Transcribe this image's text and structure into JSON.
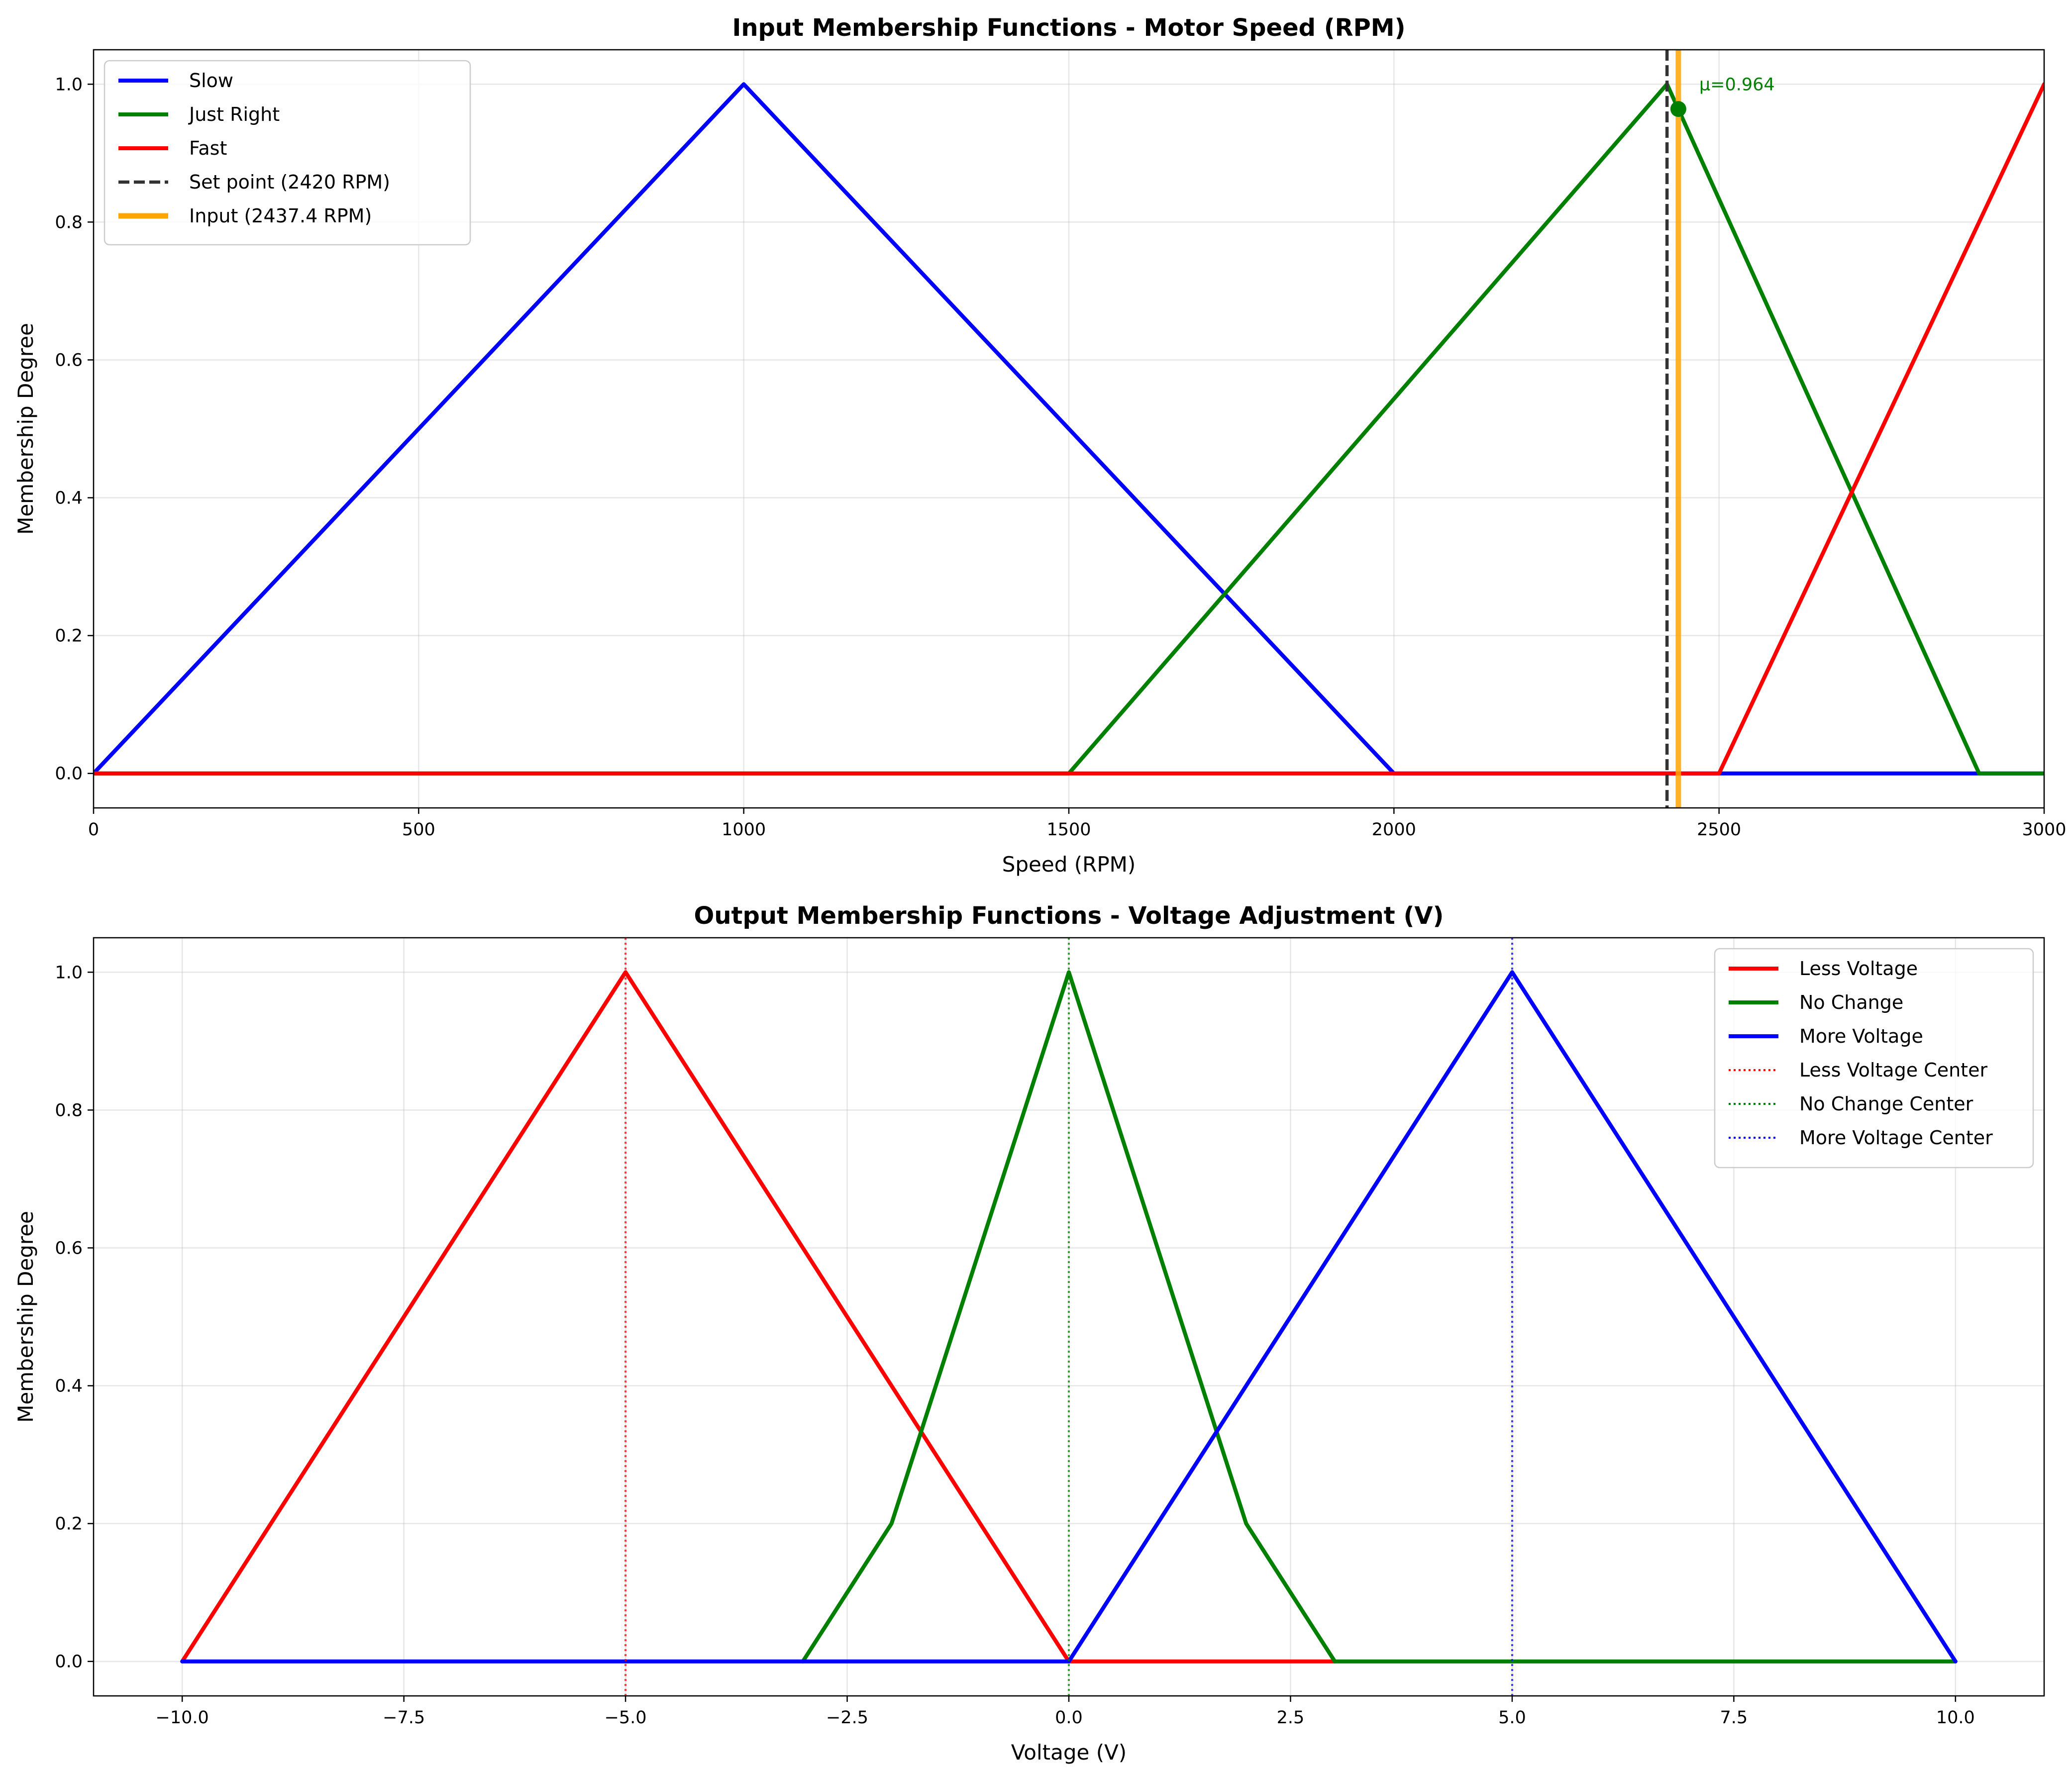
{
  "chart_data": [
    {
      "type": "line",
      "title": "Input Membership Functions - Motor Speed (RPM)",
      "xlabel": "Speed (RPM)",
      "ylabel": "Membership Degree",
      "xlim": [
        0,
        3000
      ],
      "ylim": [
        -0.05,
        1.05
      ],
      "xticks": [
        0,
        500,
        1000,
        1500,
        2000,
        2500,
        3000
      ],
      "xtick_labels": [
        "0",
        "500",
        "1000",
        "1500",
        "2000",
        "2500",
        "3000"
      ],
      "yticks": [
        0,
        0.2,
        0.4,
        0.6,
        0.8,
        1.0
      ],
      "ytick_labels": [
        "0.0",
        "0.2",
        "0.4",
        "0.6",
        "0.8",
        "1.0"
      ],
      "grid": true,
      "legend_position": "upper left",
      "series": [
        {
          "name": "Slow",
          "color": "#0000ff",
          "style": "solid",
          "x": [
            0,
            1000,
            2000,
            3000
          ],
          "y": [
            0,
            1,
            0,
            0
          ]
        },
        {
          "name": "Just Right",
          "color": "#008000",
          "style": "solid",
          "x": [
            0,
            1500,
            2420,
            2900,
            3000
          ],
          "y": [
            0,
            0,
            1,
            0,
            0
          ]
        },
        {
          "name": "Fast",
          "color": "#ff0000",
          "style": "solid",
          "x": [
            0,
            2500,
            3000
          ],
          "y": [
            0,
            0,
            1
          ]
        }
      ],
      "vlines": [
        {
          "name": "Set point (2420 RPM)",
          "x": 2420,
          "color": "#333333",
          "style": "dashed"
        },
        {
          "name": "Input (2437.4 RPM)",
          "x": 2437.4,
          "color": "#ffa500",
          "style": "solid"
        }
      ],
      "point": {
        "x": 2437.4,
        "y": 0.964,
        "color": "#008000"
      },
      "annotation": {
        "text": "μ=0.964",
        "x": 2437.4,
        "y": 0.964,
        "color": "#008000"
      }
    },
    {
      "type": "line",
      "title": "Output Membership Functions - Voltage Adjustment (V)",
      "xlabel": "Voltage (V)",
      "ylabel": "Membership Degree",
      "xlim": [
        -11,
        11
      ],
      "ylim": [
        -0.05,
        1.05
      ],
      "xticks": [
        -10,
        -7.5,
        -5,
        -2.5,
        0,
        2.5,
        5,
        7.5,
        10
      ],
      "xtick_labels": [
        "−10.0",
        "−7.5",
        "−5.0",
        "−2.5",
        "0.0",
        "2.5",
        "5.0",
        "7.5",
        "10.0"
      ],
      "yticks": [
        0,
        0.2,
        0.4,
        0.6,
        0.8,
        1.0
      ],
      "ytick_labels": [
        "0.0",
        "0.2",
        "0.4",
        "0.6",
        "0.8",
        "1.0"
      ],
      "grid": true,
      "legend_position": "upper right",
      "series": [
        {
          "name": "Less Voltage",
          "color": "#ff0000",
          "style": "solid",
          "x": [
            -10,
            -5,
            0,
            3
          ],
          "y": [
            0,
            1,
            0,
            0
          ]
        },
        {
          "name": "No Change",
          "color": "#008000",
          "style": "solid",
          "x": [
            -3,
            -2,
            0,
            2,
            3,
            10
          ],
          "y": [
            0,
            0.2,
            1,
            0.2,
            0,
            0
          ]
        },
        {
          "name": "More Voltage",
          "color": "#0000ff",
          "style": "solid",
          "x": [
            -10,
            0,
            5,
            10
          ],
          "y": [
            0,
            0,
            1,
            0
          ]
        }
      ],
      "vlines": [
        {
          "name": "Less Voltage Center",
          "x": -5,
          "color": "#ff0000",
          "style": "dotted"
        },
        {
          "name": "No Change Center",
          "x": 0,
          "color": "#008000",
          "style": "dotted"
        },
        {
          "name": "More Voltage Center",
          "x": 5,
          "color": "#0000ff",
          "style": "dotted"
        }
      ]
    }
  ]
}
